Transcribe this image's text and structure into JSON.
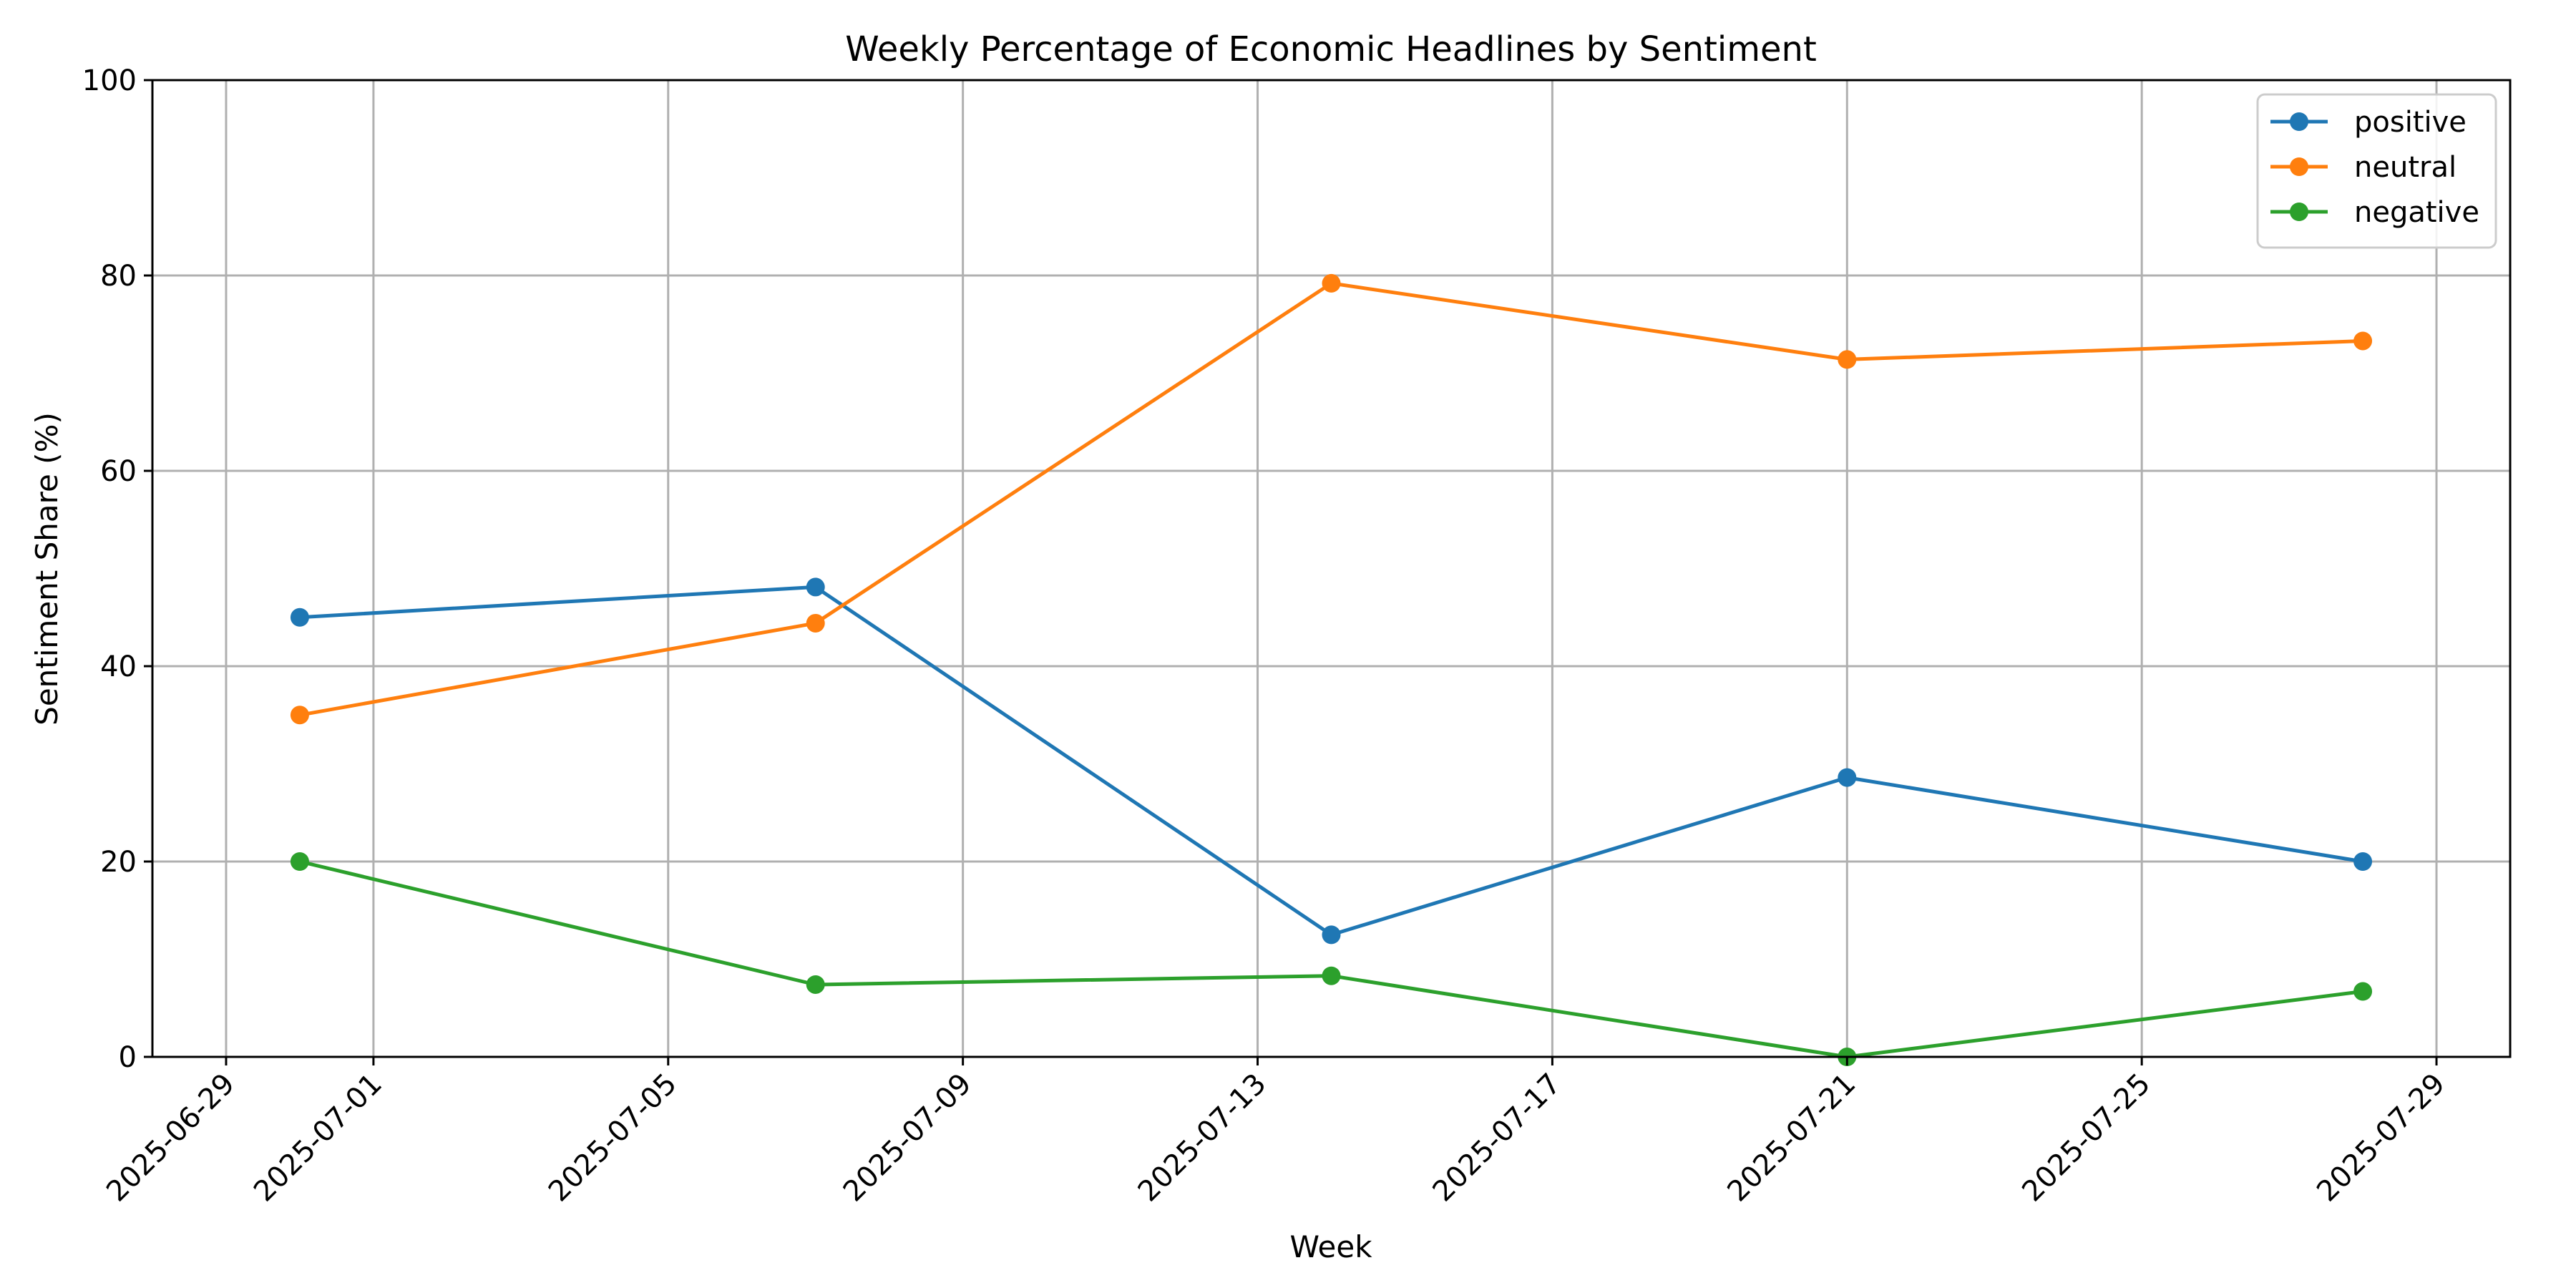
{
  "chart_data": {
    "type": "line",
    "title": "Weekly Percentage of Economic Headlines by Sentiment",
    "xlabel": "Week",
    "ylabel": "Sentiment Share (%)",
    "x": [
      "2025-06-30",
      "2025-07-07",
      "2025-07-14",
      "2025-07-21",
      "2025-07-28"
    ],
    "xlim": [
      "2025-06-28",
      "2025-07-30"
    ],
    "ylim": [
      0,
      100
    ],
    "xticks": [
      "2025-06-29",
      "2025-07-01",
      "2025-07-05",
      "2025-07-09",
      "2025-07-13",
      "2025-07-17",
      "2025-07-21",
      "2025-07-25",
      "2025-07-29"
    ],
    "yticks": [
      0,
      20,
      40,
      60,
      80,
      100
    ],
    "grid": true,
    "legend_position": "top-right",
    "series": [
      {
        "name": "positive",
        "color": "#1f77b4",
        "values": [
          45.0,
          48.1,
          12.5,
          28.6,
          20.0
        ]
      },
      {
        "name": "neutral",
        "color": "#ff7f0e",
        "values": [
          35.0,
          44.4,
          79.2,
          71.4,
          73.3
        ]
      },
      {
        "name": "negative",
        "color": "#2ca02c",
        "values": [
          20.0,
          7.4,
          8.3,
          0.0,
          6.7
        ]
      }
    ]
  }
}
